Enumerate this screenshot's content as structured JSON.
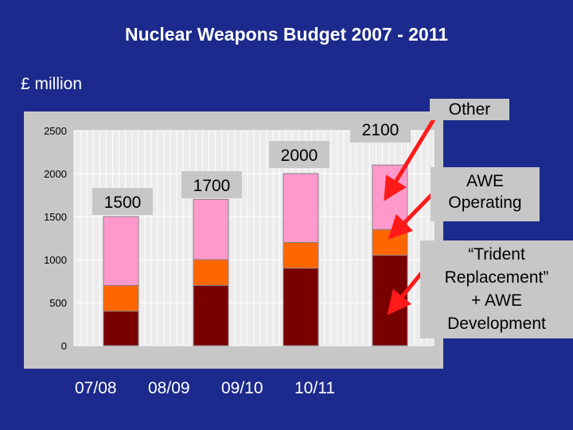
{
  "title": "Nuclear Weapons Budget 2007 - 2011",
  "unit_label": "£ million",
  "callouts": {
    "other": "Other",
    "awe_operating": [
      "AWE",
      "Operating"
    ],
    "trident": [
      "“Trident",
      "Replacement”",
      "+ AWE",
      "Development"
    ]
  },
  "colors": {
    "background": "#1b2a8c",
    "plot_panel": "#c7c7c7",
    "plot_area": "#ececec",
    "trident": "#7a0000",
    "awe_operating": "#ff6600",
    "other": "#ff99cc",
    "arrow": "#ff1a1a"
  },
  "chart_data": {
    "type": "bar",
    "stacked": true,
    "categories": [
      "07/08",
      "08/09",
      "09/10",
      "10/11"
    ],
    "series": [
      {
        "key": "trident",
        "values": [
          400,
          700,
          900,
          1050
        ]
      },
      {
        "key": "awe_operating",
        "values": [
          300,
          300,
          300,
          300
        ]
      },
      {
        "key": "other",
        "values": [
          800,
          700,
          800,
          750
        ]
      }
    ],
    "totals": [
      "1500",
      "1700",
      "2000",
      "2100"
    ],
    "ylim": [
      0,
      2500
    ],
    "yticks": [
      "0",
      "500",
      "1000",
      "1500",
      "2000",
      "2500"
    ],
    "grid": true,
    "legend": "callouts on the right"
  }
}
